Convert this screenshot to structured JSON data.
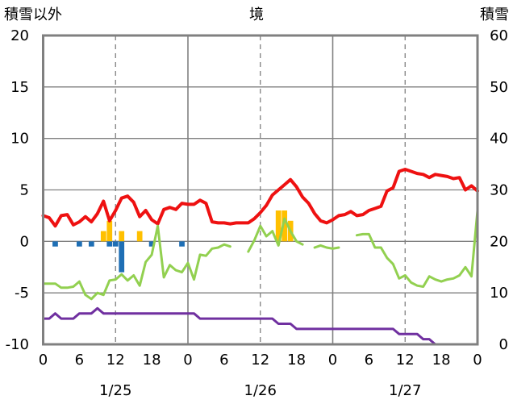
{
  "chart_data": {
    "type": "line",
    "title": "境",
    "left_axis_label": "積雪以外",
    "right_axis_label": "積雪",
    "left_ylim": [
      -10,
      20
    ],
    "left_yticks": [
      "-10",
      "-5",
      "0",
      "5",
      "10",
      "15",
      "20"
    ],
    "right_ylim": [
      0,
      60
    ],
    "right_yticks": [
      "0",
      "10",
      "20",
      "30",
      "40",
      "50",
      "60"
    ],
    "x_hour_ticks": [
      "0",
      "6",
      "12",
      "18",
      "0",
      "6",
      "12",
      "18",
      "0",
      "6",
      "12",
      "18",
      "0"
    ],
    "date_labels": [
      "1/25",
      "1/26",
      "1/27"
    ],
    "grid": true,
    "colors": {
      "temperature": "#ee1111",
      "dew_point": "#92d050",
      "snow_depth": "#7030a0",
      "precip": "#ffc000",
      "minus_bar": "#1f6fb5",
      "axis": "#808080",
      "grid": "#808080"
    },
    "series": [
      {
        "key": "temperature",
        "axis": "left",
        "values": [
          2.5,
          2.3,
          1.5,
          2.5,
          2.6,
          1.6,
          1.9,
          2.4,
          1.9,
          2.7,
          3.9,
          2.0,
          3.0,
          4.2,
          4.4,
          3.8,
          2.4,
          3.0,
          2.1,
          1.7,
          3.1,
          3.3,
          3.1,
          3.7,
          3.6,
          3.6,
          4.0,
          3.7,
          1.9,
          1.8,
          1.8,
          1.7,
          1.8,
          1.8,
          1.8,
          2.2,
          2.8,
          3.5,
          4.5,
          5.0,
          5.5,
          6.0,
          5.3,
          4.3,
          3.7,
          2.7,
          2.0,
          1.8,
          2.1,
          2.5,
          2.6,
          2.9,
          2.5,
          2.6,
          3.0,
          3.2,
          3.4,
          4.9,
          5.2,
          6.8,
          7.0,
          6.8,
          6.6,
          6.5,
          6.2,
          6.5,
          6.4,
          6.3,
          6.1,
          6.2,
          5.0,
          5.4,
          4.9
        ]
      },
      {
        "key": "dew_point",
        "axis": "left",
        "values": [
          -4.1,
          -4.1,
          -4.1,
          -4.5,
          -4.5,
          -4.4,
          -3.9,
          -5.2,
          -5.6,
          -5.0,
          -5.2,
          -3.8,
          -3.7,
          -3.2,
          -3.8,
          -3.3,
          -4.3,
          -2.0,
          -1.3,
          1.5,
          -3.5,
          -2.3,
          -2.8,
          -3.0,
          -2.1,
          -3.7,
          -1.3,
          -1.4,
          -0.7,
          -0.6,
          -0.3,
          -0.5,
          null,
          null,
          -1.0,
          0.1,
          1.5,
          0.5,
          1.0,
          -0.4,
          2.2,
          1.0,
          0.0,
          -0.3,
          null,
          -0.6,
          -0.4,
          -0.6,
          -0.7,
          -0.6,
          null,
          null,
          0.6,
          0.7,
          0.7,
          -0.6,
          -0.6,
          -1.6,
          -2.2,
          -3.6,
          -3.3,
          -4.0,
          -4.3,
          -4.4,
          -3.4,
          -3.7,
          -3.9,
          -3.7,
          -3.6,
          -3.3,
          -2.5,
          -3.4,
          3.0
        ]
      },
      {
        "key": "snow_depth",
        "axis": "right",
        "values": [
          5,
          5,
          6,
          5,
          5,
          5,
          6,
          6,
          6,
          7,
          6,
          6,
          6,
          6,
          6,
          6,
          6,
          6,
          6,
          6,
          6,
          6,
          6,
          6,
          6,
          6,
          5,
          5,
          5,
          5,
          5,
          5,
          5,
          5,
          5,
          5,
          5,
          5,
          5,
          4,
          4,
          4,
          3,
          3,
          3,
          3,
          3,
          3,
          3,
          3,
          3,
          3,
          3,
          3,
          3,
          3,
          3,
          3,
          3,
          2,
          2,
          2,
          2,
          1,
          1,
          0,
          0,
          0,
          0,
          0,
          0,
          0,
          0
        ]
      },
      {
        "key": "precip",
        "axis": "left",
        "values": [
          0,
          0,
          0,
          0,
          0,
          0,
          0,
          0,
          0,
          0,
          1.0,
          2.0,
          0,
          1.0,
          0,
          0,
          1.0,
          0,
          0,
          0,
          0,
          0,
          0,
          0,
          0,
          0,
          0,
          0,
          0,
          0,
          0,
          0,
          0,
          0,
          0,
          0,
          0,
          0,
          0,
          3.0,
          3.0,
          2.0,
          0,
          0,
          0,
          0,
          0,
          0,
          0,
          0,
          0,
          0,
          0,
          0,
          0,
          0,
          0,
          0,
          0,
          0,
          0,
          0,
          0,
          0,
          0,
          0,
          0,
          0,
          0,
          0,
          0,
          0,
          0
        ]
      },
      {
        "key": "minus_bar",
        "axis": "left",
        "values": [
          0,
          0,
          -0.5,
          0,
          0,
          0,
          -0.5,
          0,
          -0.5,
          0,
          0,
          -0.5,
          -0.5,
          -3.0,
          0,
          0,
          0,
          0,
          -0.5,
          0,
          0,
          0,
          0,
          -0.5,
          0,
          0,
          0,
          0,
          0,
          0,
          0,
          0,
          0,
          0,
          0,
          0,
          0,
          0,
          0,
          0,
          0,
          0,
          0,
          0,
          0,
          0,
          0,
          0,
          0,
          0,
          0,
          0,
          0,
          0,
          0,
          0,
          0,
          0,
          0,
          0,
          0,
          0,
          0,
          0,
          0,
          0,
          0,
          0,
          0,
          0,
          0,
          0,
          0
        ]
      }
    ]
  }
}
